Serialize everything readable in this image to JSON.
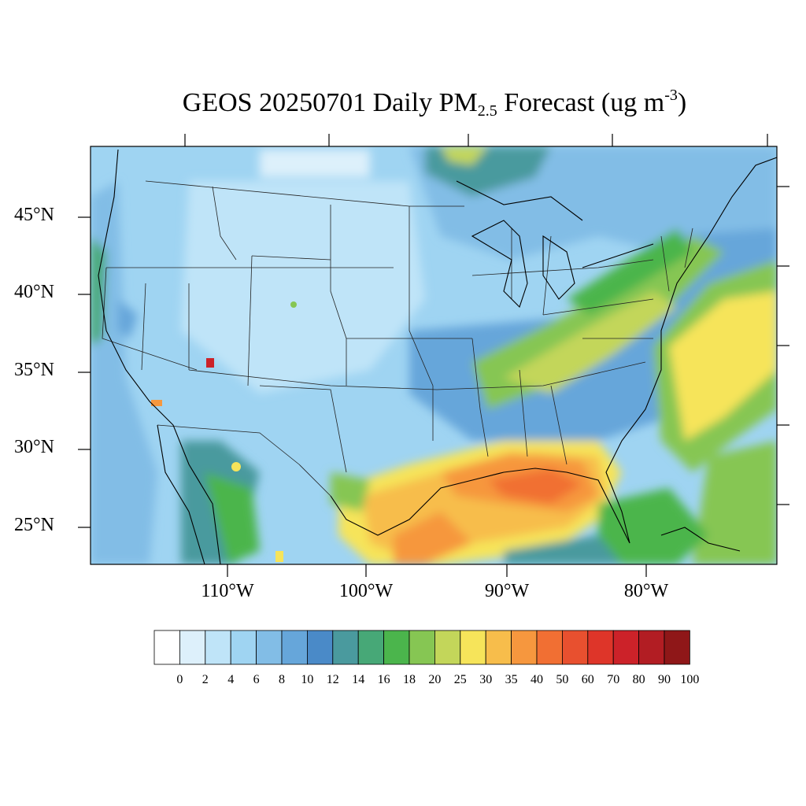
{
  "title": {
    "prefix": "GEOS 20250701 Daily PM",
    "sub": "2.5",
    "middle": " Forecast (ug m",
    "sup": "-3",
    "suffix": ")"
  },
  "lat_labels": [
    "45°N",
    "40°N",
    "35°N",
    "30°N",
    "25°N"
  ],
  "lon_labels": [
    "110°W",
    "100°W",
    "90°W",
    "80°W"
  ],
  "colorbar": {
    "labels": [
      "0",
      "2",
      "4",
      "6",
      "8",
      "10",
      "12",
      "14",
      "16",
      "18",
      "20",
      "25",
      "30",
      "35",
      "40",
      "50",
      "60",
      "70",
      "80",
      "90",
      "100"
    ],
    "colors": [
      "#ffffff",
      "#ddf0fb",
      "#bfe4f8",
      "#9fd4f2",
      "#82bde6",
      "#66a6da",
      "#4a8ac8",
      "#4a9a9e",
      "#47a877",
      "#4bb54c",
      "#86c653",
      "#c3d65a",
      "#f6e45a",
      "#f7bd4b",
      "#f6973e",
      "#f16f33",
      "#e8502f",
      "#de3529",
      "#cc2229",
      "#b21d23",
      "#8f1718"
    ]
  },
  "colors": {
    "land_bg": "#9fd4f2",
    "boundary": "#222222"
  }
}
